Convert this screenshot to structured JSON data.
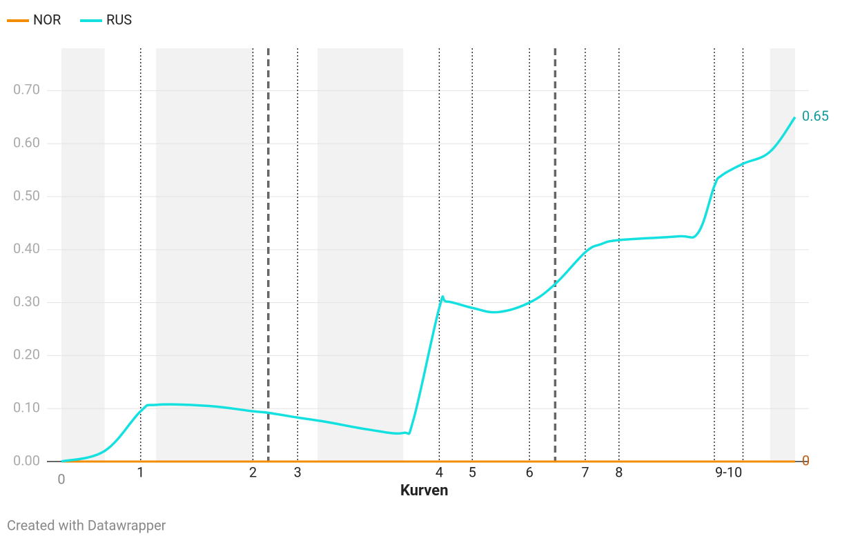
{
  "chart_data": {
    "type": "line",
    "x_label": "Kurven",
    "xlim": [
      0,
      100
    ],
    "xticks": [
      0
    ],
    "ylim": [
      0,
      0.78
    ],
    "yticks": [
      {
        "value": 0,
        "label": "0.00"
      },
      {
        "value": 0.1,
        "label": "0.10"
      },
      {
        "value": 0.2,
        "label": "0.20"
      },
      {
        "value": 0.3,
        "label": "0.30"
      },
      {
        "value": 0.4,
        "label": "0.40"
      },
      {
        "value": 0.5,
        "label": "0.50"
      },
      {
        "value": 0.6,
        "label": "0.60"
      },
      {
        "value": 0.7,
        "label": "0.70"
      }
    ],
    "grid": true,
    "shaded_ranges": [
      [
        0,
        5.9
      ],
      [
        12.9,
        26.2
      ],
      [
        34.9,
        46.6
      ],
      [
        96.6,
        100
      ]
    ],
    "dashed_lines": [
      28.2,
      67.3
    ],
    "curves": [
      {
        "label": "1",
        "x": [
          10.8
        ]
      },
      {
        "label": "2",
        "x": [
          26.1
        ]
      },
      {
        "label": "3",
        "x": [
          32.2
        ]
      },
      {
        "label": "4",
        "x": [
          51.5
        ]
      },
      {
        "label": "5",
        "x": [
          56.0
        ]
      },
      {
        "label": "6",
        "x": [
          63.8
        ]
      },
      {
        "label": "7",
        "x": [
          71.4
        ]
      },
      {
        "label": "8",
        "x": [
          76.0
        ]
      },
      {
        "label": "9-10",
        "x": [
          89.0,
          92.9
        ]
      }
    ],
    "series": [
      {
        "name": "NOR",
        "color": "#f28c00",
        "end_color": "#c0590f",
        "x": [
          0,
          100
        ],
        "values": [
          0,
          0
        ]
      },
      {
        "name": "RUS",
        "color": "#15e0e0",
        "end_color": "#129a9a",
        "x": [
          0,
          5.9,
          10.8,
          12.9,
          20,
          26,
          28.2,
          32.2,
          36,
          42,
          46.6,
          48,
          51.5,
          52.5,
          56,
          59.5,
          63.8,
          67.3,
          71.4,
          73.5,
          76,
          84,
          86.8,
          89,
          90,
          92.9,
          96.6,
          100
        ],
        "values": [
          0,
          0.02,
          0.095,
          0.107,
          0.105,
          0.095,
          0.092,
          0.083,
          0.075,
          0.06,
          0.054,
          0.08,
          0.29,
          0.302,
          0.29,
          0.282,
          0.3,
          0.335,
          0.395,
          0.41,
          0.418,
          0.425,
          0.432,
          0.52,
          0.54,
          0.562,
          0.585,
          0.65
        ]
      }
    ]
  },
  "footer": "Created with Datawrapper"
}
